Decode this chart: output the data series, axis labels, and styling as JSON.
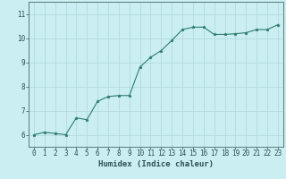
{
  "x": [
    0,
    1,
    2,
    3,
    4,
    5,
    6,
    7,
    8,
    9,
    10,
    11,
    12,
    13,
    14,
    15,
    16,
    17,
    18,
    19,
    20,
    21,
    22,
    23
  ],
  "y": [
    6.0,
    6.1,
    6.05,
    6.0,
    6.7,
    6.62,
    7.38,
    7.58,
    7.62,
    7.62,
    8.8,
    9.2,
    9.48,
    9.9,
    10.35,
    10.45,
    10.45,
    10.15,
    10.15,
    10.18,
    10.22,
    10.35,
    10.35,
    10.55
  ],
  "line_color": "#2d7d6d",
  "marker": "*",
  "marker_size": 2.5,
  "bg_color": "#caeef2",
  "grid_color": "#aed6da",
  "xlabel": "Humidex (Indice chaleur)",
  "ylim": [
    5.5,
    11.5
  ],
  "xlim": [
    -0.5,
    23.5
  ],
  "yticks": [
    6,
    7,
    8,
    9,
    10,
    11
  ],
  "xticks": [
    0,
    1,
    2,
    3,
    4,
    5,
    6,
    7,
    8,
    9,
    10,
    11,
    12,
    13,
    14,
    15,
    16,
    17,
    18,
    19,
    20,
    21,
    22,
    23
  ],
  "tick_fontsize": 5.5,
  "xlabel_fontsize": 6.5,
  "spine_color": "#5a7a7a",
  "tick_color": "#2d5050"
}
